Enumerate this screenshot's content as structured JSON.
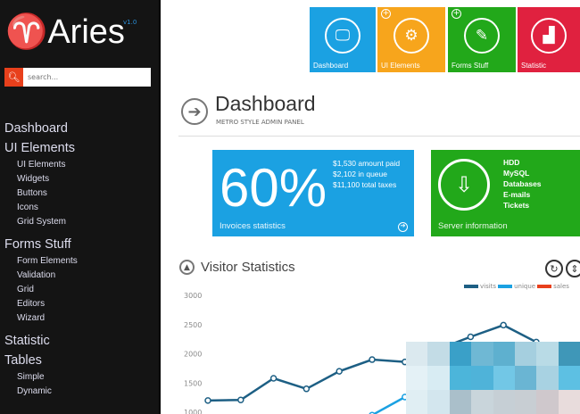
{
  "sidebar": {
    "logo": "♈Aries",
    "version": "v1.0",
    "search_placeholder": "search...",
    "search_icon": "search-icon",
    "groups": [
      {
        "label": "Dashboard",
        "items": []
      },
      {
        "label": "UI Elements",
        "items": [
          "UI Elements",
          "Widgets",
          "Buttons",
          "Icons",
          "Grid System"
        ]
      },
      {
        "label": "Forms Stuff",
        "items": [
          "Form Elements",
          "Validation",
          "Grid",
          "Editors",
          "Wizard"
        ]
      },
      {
        "label": "Statistic",
        "items": []
      },
      {
        "label": "Tables",
        "items": [
          "Simple",
          "Dynamic"
        ]
      }
    ]
  },
  "tiles": [
    {
      "label": "Dashboard",
      "color": "#1ba1e2",
      "icon": "monitor-icon",
      "glyph": "🖵",
      "plus": false
    },
    {
      "label": "UI Elements",
      "color": "#f7a51c",
      "icon": "gear-icon",
      "glyph": "⚙",
      "plus": true
    },
    {
      "label": "Forms Stuff",
      "color": "#22a81a",
      "icon": "pencil-icon",
      "glyph": "✎",
      "plus": true
    },
    {
      "label": "Statistic",
      "color": "#e0213f",
      "icon": "bar-chart-icon",
      "glyph": "▟",
      "plus": false
    }
  ],
  "header": {
    "title": "Dashboard",
    "subtitle": "METRO STYLE ADMIN PANEL"
  },
  "invoices": {
    "percent": "60%",
    "lines": [
      "$1,530 amount paid",
      "$2,102 in queue",
      "$11,100 total taxes"
    ],
    "footer": "Invoices statistics"
  },
  "server": {
    "lines": [
      "HDD",
      "MySQL",
      "Databases",
      "E-mails",
      "Tickets"
    ],
    "footer": "Server information"
  },
  "visitor": {
    "title": "Visitor Statistics"
  },
  "chart_data": {
    "type": "line",
    "yticks": [
      3000,
      2500,
      2000,
      1500,
      1000
    ],
    "ylim": [
      1000,
      3000
    ],
    "legend_position": "top-right",
    "series": [
      {
        "name": "visits",
        "color": "#1d5f84",
        "values": [
          1200,
          1210,
          1580,
          1400,
          1700,
          1900,
          1860,
          null,
          2290,
          2490,
          2200
        ]
      },
      {
        "name": "unique",
        "color": "#1ba1e2",
        "values": [
          null,
          null,
          null,
          null,
          null,
          950,
          1260,
          null,
          null,
          null,
          null
        ]
      },
      {
        "name": "sales",
        "color": "#e8401c",
        "values": []
      }
    ]
  }
}
